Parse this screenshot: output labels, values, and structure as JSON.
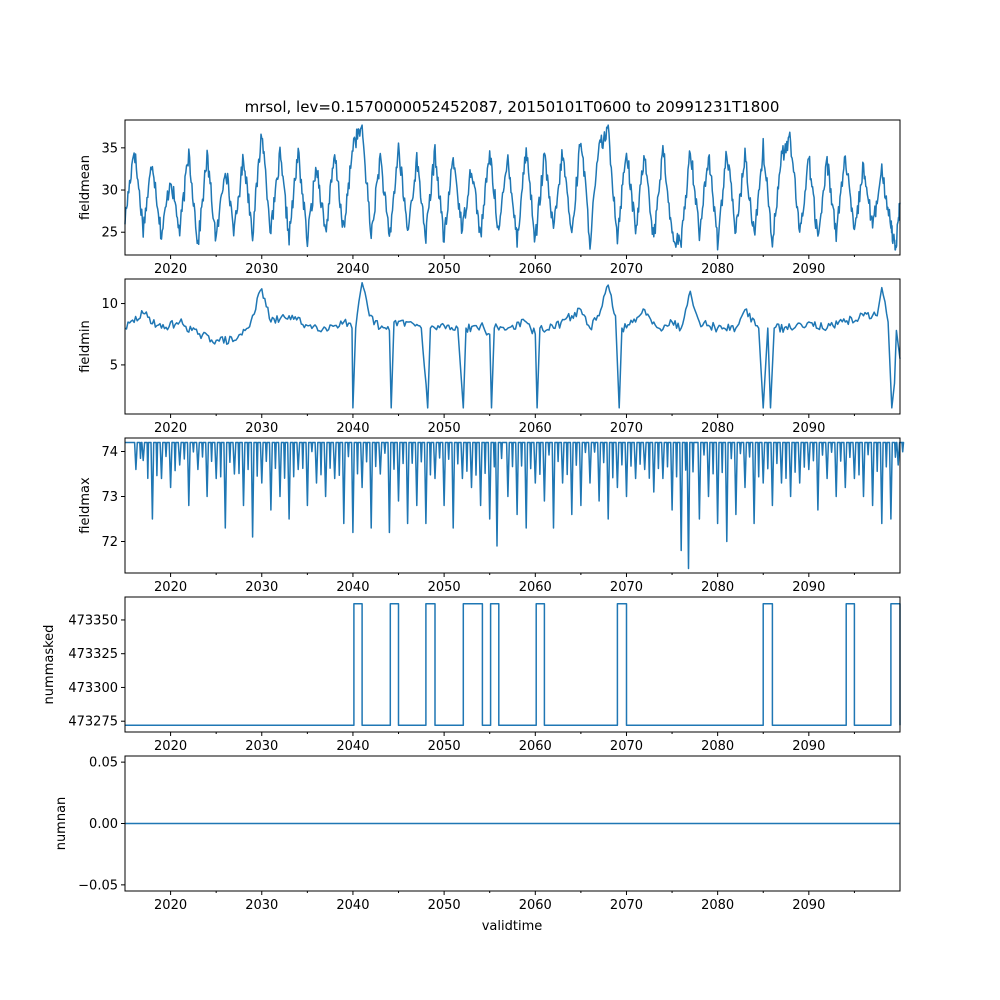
{
  "chart_data": {
    "type": "line",
    "title": "mrsol, lev=0.1570000052452087, 20150101T0600 to 20991231T1800",
    "xlabel": "validtime",
    "xlim": [
      2015.0,
      2100.0
    ],
    "x_ticks": [
      2020,
      2030,
      2040,
      2050,
      2060,
      2070,
      2080,
      2090
    ],
    "x_tick_labels": [
      "2020",
      "2030",
      "2040",
      "2050",
      "2060",
      "2070",
      "2080",
      "2090"
    ],
    "color": "#1f77b4",
    "grid": false,
    "legend": "none",
    "panels": [
      {
        "ylabel": "fieldmean",
        "ylim": [
          22.3,
          38.3
        ],
        "y_ticks": [
          25,
          30,
          35
        ],
        "y_tick_labels": [
          "25",
          "30",
          "35"
        ],
        "points": [
          [
            2015.0,
            26.5
          ],
          [
            2016.0,
            35.0
          ],
          [
            2017.0,
            25.5
          ],
          [
            2018.0,
            33.5
          ],
          [
            2019.0,
            24.5
          ],
          [
            2020.0,
            31.5
          ],
          [
            2021.0,
            25.0
          ],
          [
            2022.0,
            34.5
          ],
          [
            2023.0,
            23.5
          ],
          [
            2024.0,
            34.0
          ],
          [
            2025.0,
            24.0
          ],
          [
            2026.0,
            33.0
          ],
          [
            2027.0,
            25.0
          ],
          [
            2028.0,
            34.0
          ],
          [
            2029.0,
            25.0
          ],
          [
            2030.0,
            37.0
          ],
          [
            2031.0,
            25.0
          ],
          [
            2032.0,
            34.0
          ],
          [
            2033.0,
            24.5
          ],
          [
            2034.0,
            34.5
          ],
          [
            2035.0,
            24.0
          ],
          [
            2036.0,
            33.0
          ],
          [
            2037.0,
            25.0
          ],
          [
            2038.0,
            34.0
          ],
          [
            2039.0,
            25.0
          ],
          [
            2040.0,
            35.5
          ],
          [
            2041.0,
            37.3
          ],
          [
            2042.0,
            24.5
          ],
          [
            2043.0,
            34.0
          ],
          [
            2044.0,
            24.0
          ],
          [
            2045.0,
            35.0
          ],
          [
            2046.0,
            25.0
          ],
          [
            2047.0,
            33.5
          ],
          [
            2048.0,
            24.5
          ],
          [
            2049.0,
            34.5
          ],
          [
            2050.0,
            24.0
          ],
          [
            2051.0,
            34.0
          ],
          [
            2052.0,
            25.0
          ],
          [
            2053.0,
            33.0
          ],
          [
            2054.0,
            24.5
          ],
          [
            2055.0,
            34.5
          ],
          [
            2056.0,
            25.0
          ],
          [
            2057.0,
            34.0
          ],
          [
            2058.0,
            24.0
          ],
          [
            2059.0,
            35.0
          ],
          [
            2060.0,
            24.0
          ],
          [
            2061.0,
            34.0
          ],
          [
            2062.0,
            25.0
          ],
          [
            2063.0,
            34.5
          ],
          [
            2064.0,
            24.5
          ],
          [
            2065.0,
            36.5
          ],
          [
            2066.0,
            24.0
          ],
          [
            2067.0,
            35.0
          ],
          [
            2068.0,
            37.0
          ],
          [
            2069.0,
            24.5
          ],
          [
            2070.0,
            35.0
          ],
          [
            2071.0,
            25.0
          ],
          [
            2072.0,
            34.5
          ],
          [
            2073.0,
            24.0
          ],
          [
            2074.0,
            35.0
          ],
          [
            2075.0,
            24.5
          ],
          [
            2076.0,
            23.5
          ],
          [
            2077.0,
            35.0
          ],
          [
            2078.0,
            25.0
          ],
          [
            2079.0,
            34.0
          ],
          [
            2080.0,
            24.0
          ],
          [
            2081.0,
            34.5
          ],
          [
            2082.0,
            25.0
          ],
          [
            2083.0,
            34.0
          ],
          [
            2084.0,
            24.5
          ],
          [
            2085.0,
            35.0
          ],
          [
            2086.0,
            24.0
          ],
          [
            2087.0,
            34.0
          ],
          [
            2088.0,
            36.0
          ],
          [
            2089.0,
            24.5
          ],
          [
            2090.0,
            34.0
          ],
          [
            2091.0,
            24.0
          ],
          [
            2092.0,
            33.5
          ],
          [
            2093.0,
            25.0
          ],
          [
            2094.0,
            34.0
          ],
          [
            2095.0,
            24.5
          ],
          [
            2096.0,
            33.0
          ],
          [
            2097.0,
            25.5
          ],
          [
            2098.0,
            32.0
          ],
          [
            2099.0,
            26.0
          ],
          [
            2099.5,
            23.0
          ],
          [
            2100.0,
            28.5
          ]
        ]
      },
      {
        "ylabel": "fieldmin",
        "ylim": [
          1.0,
          12.0
        ],
        "y_ticks": [
          5,
          10
        ],
        "y_tick_labels": [
          "5",
          "10"
        ],
        "points": [
          [
            2015.0,
            8.0
          ],
          [
            2017.0,
            9.2
          ],
          [
            2019.0,
            8.0
          ],
          [
            2021.0,
            8.5
          ],
          [
            2023.0,
            7.5
          ],
          [
            2025.0,
            7.0
          ],
          [
            2027.0,
            7.0
          ],
          [
            2028.5,
            8.0
          ],
          [
            2030.0,
            11.2
          ],
          [
            2031.0,
            8.5
          ],
          [
            2033.0,
            9.0
          ],
          [
            2035.0,
            8.2
          ],
          [
            2037.0,
            8.0
          ],
          [
            2039.0,
            8.5
          ],
          [
            2039.9,
            8.0
          ],
          [
            2040.0,
            1.5
          ],
          [
            2040.3,
            8.0
          ],
          [
            2041.0,
            11.7
          ],
          [
            2041.8,
            9.0
          ],
          [
            2043.0,
            8.0
          ],
          [
            2044.0,
            7.8
          ],
          [
            2044.2,
            1.5
          ],
          [
            2044.5,
            8.5
          ],
          [
            2046.0,
            8.5
          ],
          [
            2047.5,
            8.0
          ],
          [
            2048.2,
            1.5
          ],
          [
            2048.5,
            8.0
          ],
          [
            2050.0,
            8.2
          ],
          [
            2051.5,
            8.0
          ],
          [
            2052.1,
            1.5
          ],
          [
            2052.4,
            8.0
          ],
          [
            2054.0,
            8.2
          ],
          [
            2055.0,
            7.5
          ],
          [
            2055.2,
            1.5
          ],
          [
            2055.5,
            8.0
          ],
          [
            2057.0,
            8.0
          ],
          [
            2059.0,
            8.5
          ],
          [
            2060.0,
            7.5
          ],
          [
            2060.2,
            1.5
          ],
          [
            2060.5,
            8.0
          ],
          [
            2062.0,
            8.0
          ],
          [
            2064.0,
            9.0
          ],
          [
            2065.0,
            9.5
          ],
          [
            2066.0,
            8.0
          ],
          [
            2067.0,
            9.0
          ],
          [
            2068.0,
            11.5
          ],
          [
            2068.8,
            9.0
          ],
          [
            2069.2,
            1.5
          ],
          [
            2069.5,
            8.0
          ],
          [
            2071.0,
            8.5
          ],
          [
            2072.0,
            9.5
          ],
          [
            2073.5,
            8.0
          ],
          [
            2075.0,
            8.5
          ],
          [
            2076.0,
            8.0
          ],
          [
            2077.0,
            11.0
          ],
          [
            2078.0,
            8.5
          ],
          [
            2080.0,
            8.0
          ],
          [
            2082.0,
            8.0
          ],
          [
            2083.0,
            9.5
          ],
          [
            2084.5,
            8.0
          ],
          [
            2085.0,
            1.5
          ],
          [
            2085.5,
            8.0
          ],
          [
            2085.8,
            1.5
          ],
          [
            2086.2,
            8.0
          ],
          [
            2088.0,
            8.0
          ],
          [
            2090.0,
            8.5
          ],
          [
            2092.0,
            8.0
          ],
          [
            2094.0,
            8.5
          ],
          [
            2096.0,
            9.0
          ],
          [
            2097.5,
            9.0
          ],
          [
            2098.0,
            11.3
          ],
          [
            2098.7,
            8.5
          ],
          [
            2099.1,
            1.5
          ],
          [
            2099.4,
            3.5
          ],
          [
            2099.6,
            7.8
          ],
          [
            2100.0,
            5.5
          ]
        ]
      },
      {
        "ylabel": "fieldmax",
        "ylim": [
          71.3,
          74.3
        ],
        "y_ticks": [
          72,
          73,
          74
        ],
        "y_tick_labels": [
          "72",
          "73",
          "74"
        ],
        "top": 74.2,
        "dips": [
          [
            2016.2,
            73.6
          ],
          [
            2017.0,
            73.8
          ],
          [
            2018.0,
            72.5
          ],
          [
            2019.0,
            73.4
          ],
          [
            2020.0,
            73.2
          ],
          [
            2021.0,
            73.7
          ],
          [
            2022.0,
            72.8
          ],
          [
            2023.0,
            73.6
          ],
          [
            2024.0,
            73.0
          ],
          [
            2025.0,
            73.4
          ],
          [
            2026.0,
            72.3
          ],
          [
            2027.0,
            73.5
          ],
          [
            2028.0,
            72.8
          ],
          [
            2029.0,
            72.1
          ],
          [
            2030.0,
            73.3
          ],
          [
            2031.0,
            72.7
          ],
          [
            2032.0,
            73.0
          ],
          [
            2033.0,
            72.5
          ],
          [
            2034.0,
            73.6
          ],
          [
            2035.0,
            72.8
          ],
          [
            2036.0,
            73.3
          ],
          [
            2037.0,
            73.0
          ],
          [
            2038.0,
            73.4
          ],
          [
            2039.0,
            72.4
          ],
          [
            2040.0,
            72.2
          ],
          [
            2041.0,
            73.2
          ],
          [
            2042.0,
            72.3
          ],
          [
            2043.0,
            73.5
          ],
          [
            2044.0,
            72.2
          ],
          [
            2045.0,
            72.9
          ],
          [
            2046.0,
            72.4
          ],
          [
            2047.0,
            72.8
          ],
          [
            2048.0,
            72.4
          ],
          [
            2049.0,
            73.4
          ],
          [
            2050.0,
            72.8
          ],
          [
            2051.0,
            72.3
          ],
          [
            2052.0,
            73.4
          ],
          [
            2053.0,
            73.2
          ],
          [
            2054.0,
            72.8
          ],
          [
            2055.0,
            72.5
          ],
          [
            2055.8,
            71.9
          ],
          [
            2057.0,
            73.0
          ],
          [
            2058.0,
            72.6
          ],
          [
            2059.0,
            72.3
          ],
          [
            2060.0,
            73.3
          ],
          [
            2061.0,
            72.9
          ],
          [
            2062.0,
            72.3
          ],
          [
            2063.0,
            73.3
          ],
          [
            2064.0,
            72.6
          ],
          [
            2065.0,
            72.8
          ],
          [
            2066.0,
            73.3
          ],
          [
            2067.0,
            72.9
          ],
          [
            2068.0,
            72.5
          ],
          [
            2069.0,
            73.2
          ],
          [
            2070.0,
            73.0
          ],
          [
            2071.0,
            73.4
          ],
          [
            2072.0,
            73.6
          ],
          [
            2073.0,
            73.1
          ],
          [
            2074.0,
            73.4
          ],
          [
            2075.0,
            72.7
          ],
          [
            2076.0,
            71.8
          ],
          [
            2076.8,
            71.4
          ],
          [
            2078.0,
            72.5
          ],
          [
            2079.0,
            73.0
          ],
          [
            2080.0,
            72.4
          ],
          [
            2081.0,
            72.0
          ],
          [
            2082.0,
            72.6
          ],
          [
            2083.0,
            73.2
          ],
          [
            2084.0,
            72.4
          ],
          [
            2085.0,
            73.3
          ],
          [
            2086.0,
            72.8
          ],
          [
            2087.0,
            73.3
          ],
          [
            2088.0,
            73.0
          ],
          [
            2089.0,
            73.3
          ],
          [
            2090.0,
            73.6
          ],
          [
            2091.0,
            72.7
          ],
          [
            2092.0,
            73.4
          ],
          [
            2093.0,
            73.0
          ],
          [
            2094.0,
            73.2
          ],
          [
            2095.0,
            73.4
          ],
          [
            2096.0,
            73.0
          ],
          [
            2097.0,
            72.8
          ],
          [
            2098.0,
            72.4
          ],
          [
            2099.0,
            72.5
          ],
          [
            2099.8,
            73.7
          ]
        ]
      },
      {
        "ylabel": "nummasked",
        "ylim": [
          473267,
          473367
        ],
        "y_ticks": [
          473275,
          473300,
          473325,
          473350
        ],
        "y_tick_labels": [
          "473275",
          "473300",
          "473325",
          "473350"
        ],
        "baseline": 473272,
        "high": 473362,
        "high_intervals": [
          [
            2040.1,
            2041.0
          ],
          [
            2044.1,
            2045.0
          ],
          [
            2048.0,
            2049.0
          ],
          [
            2052.1,
            2054.2
          ],
          [
            2055.1,
            2056.0
          ],
          [
            2060.1,
            2061.0
          ],
          [
            2069.0,
            2070.0
          ],
          [
            2085.0,
            2086.0
          ],
          [
            2094.1,
            2095.0
          ],
          [
            2099.0,
            2100.0
          ]
        ]
      },
      {
        "ylabel": "numnan",
        "ylim": [
          -0.055,
          0.055
        ],
        "y_ticks": [
          -0.05,
          0.0,
          0.05
        ],
        "y_tick_labels": [
          "−0.05",
          "0.00",
          "0.05"
        ],
        "points": [
          [
            2015.0,
            0.0
          ],
          [
            2100.0,
            0.0
          ]
        ]
      }
    ]
  }
}
